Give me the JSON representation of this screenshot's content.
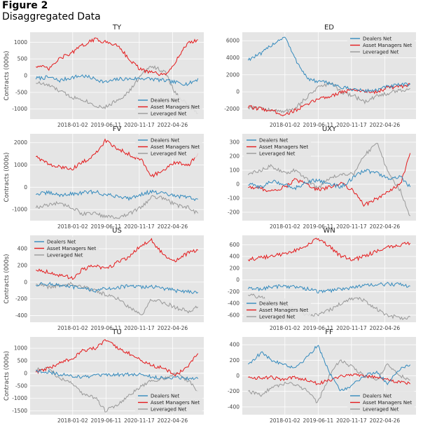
{
  "figure": {
    "label": "Figure 2",
    "title": "Disaggregated Data"
  },
  "legend_names": [
    "Dealers Net",
    "Asset Managers Net",
    "Leveraged Net"
  ],
  "colors": {
    "dealers": "#348abd",
    "asset_managers": "#e41a1c",
    "leveraged": "#999999",
    "panel_bg": "#e5e5e5",
    "grid": "#ffffff"
  },
  "shared_x_ticks": [
    "2018-01-02",
    "2019-06-11",
    "2020-11-17",
    "2022-04-26"
  ],
  "chart_data": [
    {
      "type": "line",
      "title": "TY",
      "ylabel": "Contracts (000s)",
      "x": [
        "2016-06-01",
        "2017-01-01",
        "2017-06-01",
        "2018-01-01",
        "2018-06-01",
        "2019-01-01",
        "2019-06-01",
        "2020-01-01",
        "2020-06-01",
        "2021-01-01",
        "2021-06-01",
        "2022-01-01",
        "2022-06-01",
        "2023-01-01",
        "2023-06-01"
      ],
      "ylim": [
        -1300,
        1300
      ],
      "yticks": [
        -1000,
        -500,
        0,
        500,
        1000
      ],
      "legend_position": "lower-right",
      "series": [
        {
          "name": "Dealers Net",
          "values": [
            -80,
            -50,
            -150,
            -50,
            0,
            -100,
            -200,
            -100,
            -100,
            -80,
            -100,
            -150,
            -200,
            -250,
            -100
          ]
        },
        {
          "name": "Asset Managers Net",
          "values": [
            300,
            200,
            500,
            700,
            900,
            1100,
            1000,
            900,
            500,
            150,
            100,
            0,
            400,
            1000,
            1050
          ]
        },
        {
          "name": "Leveraged Net",
          "values": [
            -200,
            -300,
            -450,
            -650,
            -700,
            -900,
            -950,
            -700,
            -500,
            50,
            300,
            100,
            -500,
            -900,
            -1150
          ]
        }
      ]
    },
    {
      "type": "line",
      "title": "ED",
      "ylabel": "",
      "x": [
        "2016-06-01",
        "2017-01-01",
        "2017-06-01",
        "2018-01-01",
        "2018-06-01",
        "2019-01-01",
        "2019-06-01",
        "2020-01-01",
        "2020-06-01",
        "2021-01-01",
        "2021-06-01",
        "2022-01-01",
        "2022-06-01",
        "2023-01-01",
        "2023-06-01"
      ],
      "ylim": [
        -3200,
        7000
      ],
      "yticks": [
        -2000,
        0,
        2000,
        4000,
        6000
      ],
      "legend_position": "top-right",
      "series": [
        {
          "name": "Dealers Net",
          "values": [
            3800,
            4500,
            5500,
            6500,
            4000,
            1500,
            1200,
            1000,
            500,
            300,
            100,
            200,
            600,
            800,
            900
          ]
        },
        {
          "name": "Asset Managers Net",
          "values": [
            -1800,
            -2000,
            -2200,
            -2700,
            -2200,
            -1500,
            -800,
            -500,
            0,
            200,
            100,
            0,
            500,
            600,
            800
          ]
        },
        {
          "name": "Leveraged Net",
          "values": [
            -1800,
            -1900,
            -2200,
            -2300,
            -2000,
            -500,
            500,
            1000,
            0,
            -500,
            -1200,
            -500,
            -200,
            200,
            300
          ]
        }
      ]
    },
    {
      "type": "line",
      "title": "FV",
      "ylabel": "Contracts (000s)",
      "x": [
        "2016-06-01",
        "2017-01-01",
        "2017-06-01",
        "2018-01-01",
        "2018-06-01",
        "2019-01-01",
        "2019-06-01",
        "2020-01-01",
        "2020-06-01",
        "2021-01-01",
        "2021-06-01",
        "2022-01-01",
        "2022-06-01",
        "2023-01-01",
        "2023-06-01"
      ],
      "ylim": [
        -1500,
        2400
      ],
      "yticks": [
        -1000,
        0,
        1000,
        2000
      ],
      "legend_position": "top-right",
      "series": [
        {
          "name": "Dealers Net",
          "values": [
            -300,
            -250,
            -350,
            -300,
            -250,
            -200,
            -350,
            -400,
            -500,
            -300,
            -200,
            -300,
            -400,
            -450,
            -550
          ]
        },
        {
          "name": "Asset Managers Net",
          "values": [
            1400,
            1000,
            900,
            850,
            1100,
            1500,
            2100,
            1700,
            1500,
            1200,
            500,
            800,
            1100,
            1000,
            1500
          ]
        },
        {
          "name": "Leveraged Net",
          "values": [
            -900,
            -800,
            -700,
            -900,
            -1200,
            -1200,
            -1300,
            -1400,
            -1200,
            -900,
            -400,
            -500,
            -800,
            -900,
            -1200
          ]
        }
      ]
    },
    {
      "type": "line",
      "title": "UXY",
      "ylabel": "",
      "x": [
        "2016-06-01",
        "2017-01-01",
        "2017-06-01",
        "2018-01-01",
        "2018-06-01",
        "2019-01-01",
        "2019-06-01",
        "2020-01-01",
        "2020-06-01",
        "2021-01-01",
        "2021-06-01",
        "2022-01-01",
        "2022-06-01",
        "2023-01-01",
        "2023-06-01"
      ],
      "ylim": [
        -260,
        360
      ],
      "yticks": [
        -200,
        -100,
        0,
        100,
        200,
        300
      ],
      "legend_position": "top-left",
      "series": [
        {
          "name": "Dealers Net",
          "values": [
            0,
            -20,
            20,
            0,
            -30,
            20,
            30,
            0,
            -20,
            50,
            100,
            80,
            40,
            50,
            -20
          ]
        },
        {
          "name": "Asset Managers Net",
          "values": [
            -20,
            -30,
            -50,
            -20,
            30,
            0,
            -40,
            -20,
            10,
            -50,
            -150,
            -100,
            -60,
            0,
            220
          ]
        },
        {
          "name": "Leveraged Net",
          "values": [
            70,
            100,
            130,
            80,
            100,
            30,
            -30,
            50,
            70,
            80,
            200,
            300,
            100,
            -50,
            -230
          ]
        }
      ]
    },
    {
      "type": "line",
      "title": "US",
      "ylabel": "Contracts (000s)",
      "x": [
        "2016-06-01",
        "2017-01-01",
        "2017-06-01",
        "2018-01-01",
        "2018-06-01",
        "2019-01-01",
        "2019-06-01",
        "2020-01-01",
        "2020-06-01",
        "2021-01-01",
        "2021-06-01",
        "2022-01-01",
        "2022-06-01",
        "2023-01-01",
        "2023-06-01"
      ],
      "ylim": [
        -480,
        560
      ],
      "yticks": [
        -400,
        -200,
        0,
        200,
        400
      ],
      "legend_position": "top-left",
      "series": [
        {
          "name": "Dealers Net",
          "values": [
            -30,
            -20,
            -40,
            -60,
            -80,
            -100,
            -80,
            -60,
            -50,
            -60,
            -50,
            -80,
            -100,
            -110,
            -120
          ]
        },
        {
          "name": "Asset Managers Net",
          "values": [
            150,
            120,
            80,
            50,
            150,
            200,
            150,
            250,
            300,
            450,
            500,
            300,
            250,
            350,
            380
          ]
        },
        {
          "name": "Leveraged Net",
          "values": [
            -20,
            -60,
            -40,
            -20,
            -50,
            -100,
            -150,
            -200,
            -300,
            -380,
            -200,
            -250,
            -300,
            -350,
            -300
          ]
        }
      ]
    },
    {
      "type": "line",
      "title": "WN",
      "ylabel": "",
      "x": [
        "2016-06-01",
        "2017-01-01",
        "2017-06-01",
        "2018-01-01",
        "2018-06-01",
        "2019-01-01",
        "2019-06-01",
        "2020-01-01",
        "2020-06-01",
        "2021-01-01",
        "2021-06-01",
        "2022-01-01",
        "2022-06-01",
        "2023-01-01",
        "2023-06-01"
      ],
      "ylim": [
        -720,
        760
      ],
      "yticks": [
        -600,
        -400,
        -200,
        0,
        200,
        400,
        600
      ],
      "legend_position": "lower-left",
      "series": [
        {
          "name": "Dealers Net",
          "values": [
            -150,
            -150,
            -120,
            -100,
            -120,
            -150,
            -200,
            -180,
            -150,
            -120,
            -100,
            -80,
            -70,
            -80,
            -100
          ]
        },
        {
          "name": "Asset Managers Net",
          "values": [
            350,
            380,
            400,
            450,
            500,
            600,
            700,
            550,
            400,
            350,
            400,
            500,
            550,
            600,
            630
          ]
        },
        {
          "name": "Leveraged Net",
          "values": [
            -250,
            -300,
            -400,
            -450,
            -500,
            -600,
            -600,
            -500,
            -400,
            -300,
            -350,
            -500,
            -600,
            -650,
            -630
          ]
        }
      ]
    },
    {
      "type": "line",
      "title": "TU",
      "ylabel": "Contracts (000s)",
      "x": [
        "2016-06-01",
        "2017-01-01",
        "2017-06-01",
        "2018-01-01",
        "2018-06-01",
        "2019-01-01",
        "2019-06-01",
        "2020-01-01",
        "2020-06-01",
        "2021-01-01",
        "2021-06-01",
        "2022-01-01",
        "2022-06-01",
        "2023-01-01",
        "2023-06-01"
      ],
      "ylim": [
        -1650,
        1450
      ],
      "yticks": [
        -1500,
        -1000,
        -500,
        0,
        500,
        1000
      ],
      "legend_position": "lower-right",
      "series": [
        {
          "name": "Dealers Net",
          "values": [
            100,
            50,
            -50,
            -100,
            -150,
            -100,
            -80,
            -50,
            -50,
            -50,
            -150,
            -200,
            -150,
            -200,
            -200
          ]
        },
        {
          "name": "Asset Managers Net",
          "values": [
            50,
            200,
            400,
            600,
            900,
            1000,
            1300,
            1000,
            800,
            500,
            300,
            200,
            -100,
            300,
            800
          ]
        },
        {
          "name": "Leveraged Net",
          "values": [
            150,
            200,
            -200,
            -400,
            -800,
            -1000,
            -1500,
            -1200,
            -900,
            -500,
            -300,
            -200,
            0,
            -300,
            -700
          ]
        }
      ]
    },
    {
      "type": "line",
      "title": "FF",
      "ylabel": "",
      "x": [
        "2016-06-01",
        "2017-01-01",
        "2017-06-01",
        "2018-01-01",
        "2018-06-01",
        "2019-01-01",
        "2019-06-01",
        "2020-01-01",
        "2020-06-01",
        "2021-01-01",
        "2021-06-01",
        "2022-01-01",
        "2022-06-01",
        "2023-01-01",
        "2023-06-01"
      ],
      "ylim": [
        -500,
        500
      ],
      "yticks": [
        -400,
        -200,
        0,
        200,
        400
      ],
      "legend_position": "lower-right",
      "series": [
        {
          "name": "Dealers Net",
          "values": [
            150,
            300,
            200,
            150,
            100,
            250,
            400,
            0,
            -200,
            -100,
            0,
            50,
            -100,
            100,
            150
          ]
        },
        {
          "name": "Asset Managers Net",
          "values": [
            -20,
            -30,
            -20,
            -50,
            -20,
            -50,
            -100,
            -50,
            0,
            20,
            0,
            -20,
            -50,
            -80,
            -100
          ]
        },
        {
          "name": "Leveraged Net",
          "values": [
            -200,
            -250,
            -150,
            -100,
            -100,
            -200,
            -350,
            50,
            200,
            100,
            0,
            -50,
            150,
            0,
            -50
          ]
        }
      ]
    }
  ]
}
